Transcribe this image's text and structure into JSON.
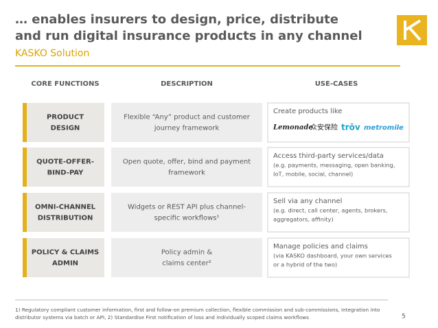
{
  "header": {
    "title_lines": [
      "… enables insurers to design, price, distribute",
      "and run digital insurance products in any channel"
    ],
    "subtitle": "KASKO Solution"
  },
  "columns": [
    "CORE FUNCTIONS",
    "DESCRIPTION",
    "USE-CASES"
  ],
  "rows": [
    {
      "function_lines": [
        "PRODUCT",
        "DESIGN"
      ],
      "description_lines": [
        "Flexible “Any” product and customer",
        "journey framework"
      ],
      "use_title": "Create products like",
      "use_detail_lines": [],
      "logos": [
        "Lemonade",
        "众安保险",
        "trōv",
        "metromile"
      ]
    },
    {
      "function_lines": [
        "QUOTE-OFFER-",
        "BIND-PAY"
      ],
      "description_lines": [
        "Open quote, offer, bind and payment",
        "framework"
      ],
      "use_title": "Access third-party services/data",
      "use_detail_lines": [
        "(e.g. payments, messaging, open banking,",
        "IoT, mobile, social, channel)"
      ]
    },
    {
      "function_lines": [
        "OMNI-CHANNEL",
        "DISTRIBUTION"
      ],
      "description_lines": [
        "Widgets or REST API plus channel-",
        "specific workflows¹"
      ],
      "use_title": "Sell via any channel",
      "use_detail_lines": [
        "(e.g. direct, call center, agents, brokers,",
        "aggregators, affinity)"
      ]
    },
    {
      "function_lines": [
        "POLICY & CLAIMS",
        "ADMIN"
      ],
      "description_lines": [
        "Policy admin &",
        "claims center²"
      ],
      "use_title": "Manage policies and claims",
      "use_detail_lines": [
        "(via KASKO dashboard, your own services",
        "or a hybrid of the two)"
      ]
    }
  ],
  "footnote_lines": [
    "1) Regulatory compliant customer information, first and follow-on premium collection, flexible commission and sub-commissions, integration into",
    "distributor systems via batch or API, 2) Standardise First notification of loss and individually scoped claims workflows"
  ],
  "page_number": "5"
}
